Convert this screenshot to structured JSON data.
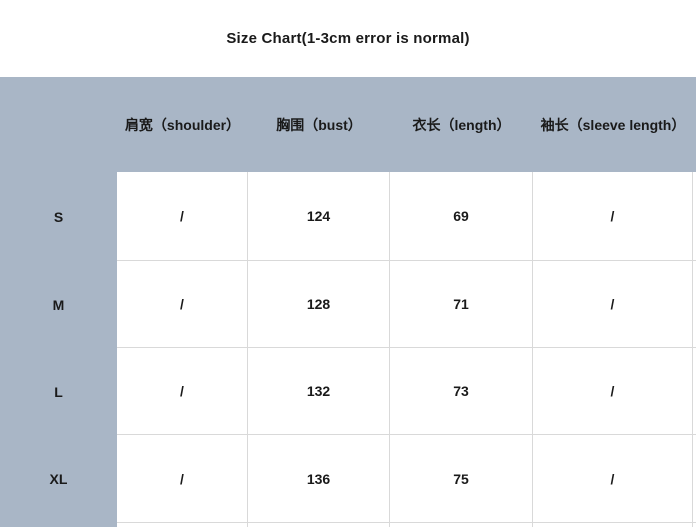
{
  "title": "Size Chart(1-3cm error is normal)",
  "colors": {
    "panel_background": "#a9b6c6",
    "cell_background": "#ffffff",
    "grid_line": "#d9d9d9",
    "text": "#1a1a1a"
  },
  "table": {
    "columns": [
      "肩宽（shoulder）",
      "胸围（bust）",
      "衣长（length）",
      "袖长（sleeve length）"
    ],
    "rows": [
      {
        "size": "S",
        "values": [
          "/",
          "124",
          "69",
          "/"
        ]
      },
      {
        "size": "M",
        "values": [
          "/",
          "128",
          "71",
          "/"
        ]
      },
      {
        "size": "L",
        "values": [
          "/",
          "132",
          "73",
          "/"
        ]
      },
      {
        "size": "XL",
        "values": [
          "/",
          "136",
          "75",
          "/"
        ]
      }
    ]
  },
  "chart_data": {
    "type": "table",
    "title": "Size Chart(1-3cm error is normal)",
    "categories": [
      "S",
      "M",
      "L",
      "XL"
    ],
    "columns": [
      "肩宽（shoulder）",
      "胸围（bust）",
      "衣长（length）",
      "袖长（sleeve length）"
    ],
    "series": [
      {
        "name": "肩宽（shoulder）",
        "values": [
          "/",
          "/",
          "/",
          "/"
        ]
      },
      {
        "name": "胸围（bust）",
        "values": [
          124,
          128,
          132,
          136
        ]
      },
      {
        "name": "衣长（length）",
        "values": [
          69,
          71,
          73,
          75
        ]
      },
      {
        "name": "袖长（sleeve length）",
        "values": [
          "/",
          "/",
          "/",
          "/"
        ]
      }
    ]
  }
}
